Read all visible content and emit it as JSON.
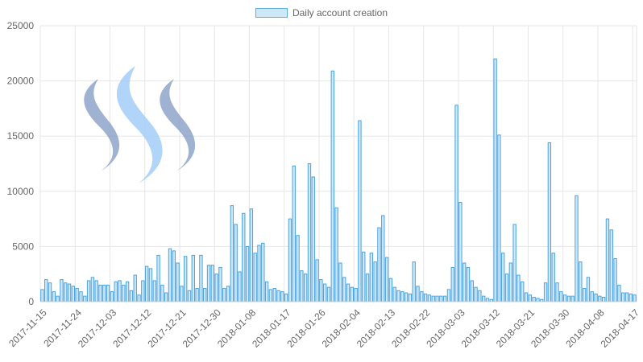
{
  "chart_data": {
    "type": "bar",
    "legend": {
      "label": "Daily account creation",
      "position": "top"
    },
    "colors": {
      "bar_fill": "#cfe8f7",
      "bar_border": "#4aa3df",
      "grid": "#e6e6e6",
      "logo_dark": "#7f98c2",
      "logo_light": "#9ccaf6"
    },
    "logo": "steem-logo-icon",
    "ylim": [
      0,
      25000
    ],
    "y_ticks": [
      "0",
      "5000",
      "10000",
      "15000",
      "20000",
      "25000"
    ],
    "x_tick_labels": [
      "2017-11-15",
      "2017-11-24",
      "2017-12-03",
      "2017-12-12",
      "2017-12-21",
      "2017-12-30",
      "2018-01-08",
      "2018-01-17",
      "2018-01-26",
      "2018-02-04",
      "2018-02-13",
      "2018-02-22",
      "2018-03-03",
      "2018-03-12",
      "2018-03-21",
      "2018-03-30",
      "2018-04-08",
      "2018-04-17"
    ],
    "x_start": "2017-11-15",
    "x_end": "2018-04-17",
    "values": [
      1100,
      2000,
      1700,
      900,
      500,
      2000,
      1700,
      1600,
      1400,
      1200,
      900,
      500,
      1900,
      2200,
      1900,
      1500,
      1500,
      1500,
      900,
      1800,
      1900,
      1500,
      1800,
      1000,
      2400,
      600,
      1900,
      3200,
      3000,
      1900,
      4200,
      1500,
      800,
      4800,
      4600,
      3500,
      1400,
      4100,
      1000,
      4200,
      1200,
      4200,
      1200,
      3300,
      3300,
      2500,
      3100,
      1200,
      1400,
      8700,
      7000,
      2700,
      8000,
      5000,
      8400,
      4400,
      5100,
      5300,
      1800,
      1100,
      1200,
      1000,
      900,
      700,
      7500,
      12300,
      6000,
      2800,
      2500,
      12500,
      11300,
      3800,
      2000,
      1600,
      1300,
      20900,
      8500,
      3500,
      2200,
      1600,
      1300,
      1200,
      16400,
      4500,
      2500,
      4400,
      3600,
      6700,
      7800,
      4000,
      2100,
      1300,
      1000,
      900,
      800,
      700,
      3600,
      1400,
      900,
      700,
      600,
      500,
      500,
      500,
      500,
      1100,
      3100,
      17800,
      9000,
      3500,
      3100,
      1900,
      1300,
      1000,
      500,
      300,
      200,
      22000,
      15100,
      4400,
      2500,
      3500,
      7000,
      2400,
      1800,
      800,
      600,
      400,
      300,
      200,
      1700,
      14400,
      4400,
      1700,
      900,
      600,
      500,
      500,
      9600,
      3600,
      1200,
      2200,
      900,
      700,
      500,
      400,
      7500,
      6500,
      3900,
      1500,
      800,
      800,
      700,
      600
    ]
  }
}
